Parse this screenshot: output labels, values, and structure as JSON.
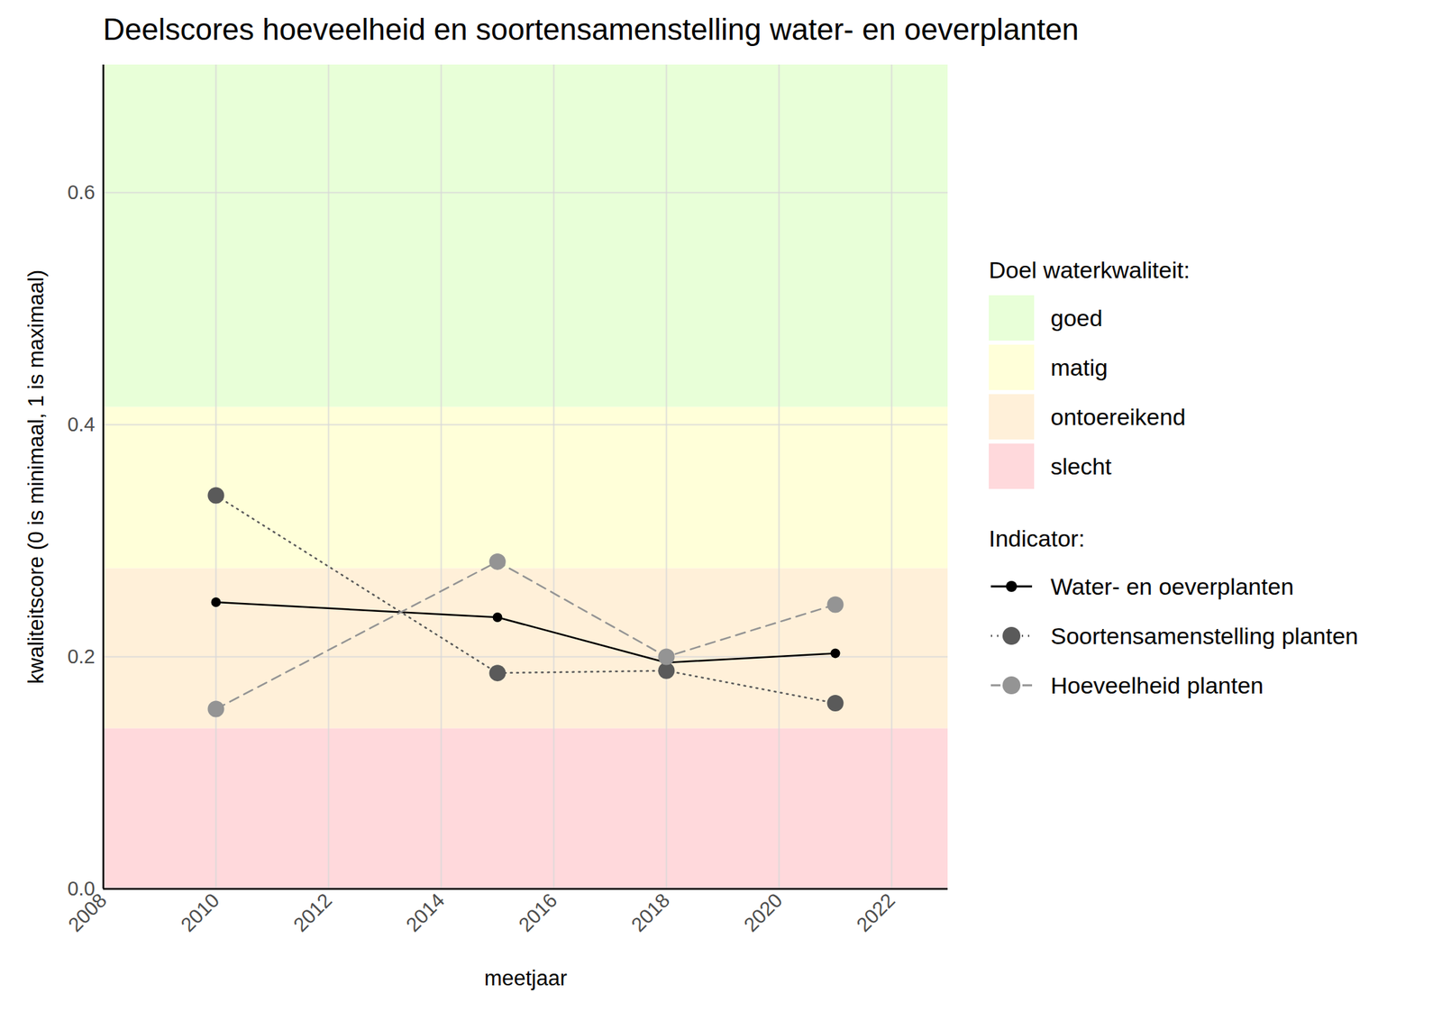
{
  "chart_data": {
    "type": "line",
    "title": "Deelscores hoeveelheid en soortensamenstelling water- en oeverplanten",
    "x_label": "meetjaar",
    "y_label": "kwaliteitscore (0 is minimaal, 1 is maximaal)",
    "x": [
      2010,
      2015,
      2018,
      2021
    ],
    "series": [
      {
        "name": "Water- en oeverplanten",
        "color": "#000000",
        "values": [
          0.247,
          0.234,
          0.195,
          0.203
        ],
        "marker": "circle",
        "line_style": "solid"
      },
      {
        "name": "Soortensamenstelling planten",
        "color": "#5a5a5a",
        "values": [
          0.339,
          0.186,
          0.188,
          0.16
        ],
        "marker": "circle",
        "line_style": "dotted"
      },
      {
        "name": "Hoeveelheid planten",
        "color": "#949494",
        "values": [
          0.155,
          0.282,
          0.2,
          0.245
        ],
        "marker": "circle",
        "line_style": "dashed"
      }
    ],
    "band_legend_title": "Doel waterkwaliteit:",
    "series_legend_title": "Indicator:",
    "bands": [
      {
        "name": "goed",
        "color": "#e8ffd8",
        "from": 0.415,
        "to": 0.71
      },
      {
        "name": "matig",
        "color": "#ffffd9",
        "from": 0.276,
        "to": 0.415
      },
      {
        "name": "ontoereikend",
        "color": "#fff0d9",
        "from": 0.138,
        "to": 0.276
      },
      {
        "name": "slecht",
        "color": "#ffd9dc",
        "from": 0,
        "to": 0.138
      }
    ],
    "xlim": [
      2008,
      2023
    ],
    "xticks": [
      2008,
      2010,
      2012,
      2014,
      2016,
      2018,
      2020,
      2022
    ],
    "ylim": [
      0,
      0.71
    ],
    "yticks": [
      {
        "value": 0,
        "label": "0.0"
      },
      0.2,
      0.4,
      0.6
    ],
    "grid": true,
    "legend": "right"
  }
}
